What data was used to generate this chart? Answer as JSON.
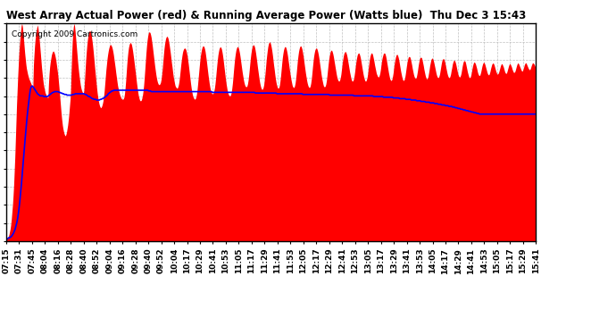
{
  "title": "West Array Actual Power (red) & Running Average Power (Watts blue)  Thu Dec 3 15:43",
  "copyright": "Copyright 2009 Cartronics.com",
  "bar_color": "#ff0000",
  "line_color": "#0000ff",
  "background_color": "#ffffff",
  "grid_color": "#c0c0c0",
  "yticks": [
    0.0,
    25.8,
    51.7,
    77.5,
    103.4,
    129.2,
    155.0,
    180.9,
    206.7,
    232.5,
    258.4,
    284.2,
    310.1
  ],
  "ymax": 310.1,
  "xtick_labels": [
    "07:15",
    "07:31",
    "07:45",
    "08:04",
    "08:16",
    "08:28",
    "08:40",
    "08:52",
    "09:04",
    "09:16",
    "09:28",
    "09:40",
    "09:52",
    "10:04",
    "10:17",
    "10:29",
    "10:41",
    "10:53",
    "11:05",
    "11:17",
    "11:29",
    "11:41",
    "11:53",
    "12:05",
    "12:17",
    "12:29",
    "12:41",
    "12:53",
    "13:05",
    "13:17",
    "13:29",
    "13:41",
    "13:53",
    "14:05",
    "14:17",
    "14:29",
    "14:41",
    "14:53",
    "15:05",
    "15:17",
    "15:29",
    "15:41"
  ],
  "actual_power": [
    3,
    4,
    5,
    6,
    7,
    10,
    14,
    18,
    24,
    32,
    42,
    52,
    65,
    80,
    100,
    120,
    145,
    170,
    195,
    215,
    235,
    252,
    268,
    280,
    291,
    300,
    307,
    310,
    306,
    298,
    288,
    278,
    268,
    260,
    252,
    246,
    242,
    238,
    235,
    232,
    230,
    228,
    226,
    224,
    222,
    220,
    218,
    250,
    265,
    278,
    288,
    295,
    300,
    305,
    308,
    303,
    296,
    288,
    278,
    268,
    258,
    248,
    240,
    232,
    225,
    220,
    216,
    212,
    210,
    208,
    206,
    205,
    204,
    224,
    238,
    248,
    255,
    260,
    265,
    268,
    270,
    271,
    270,
    268,
    265,
    261,
    256,
    250,
    244,
    237,
    229,
    220,
    210,
    200,
    190,
    180,
    172,
    165,
    160,
    156,
    153,
    151,
    150,
    152,
    155,
    160,
    165,
    172,
    180,
    190,
    200,
    210,
    240,
    265,
    285,
    298,
    306,
    310,
    306,
    298,
    288,
    278,
    268,
    258,
    249,
    241,
    234,
    228,
    222,
    218,
    215,
    213,
    211,
    210,
    215,
    228,
    242,
    256,
    268,
    278,
    286,
    292,
    296,
    299,
    300,
    299,
    296,
    292,
    286,
    279,
    271,
    262,
    253,
    244,
    235,
    226,
    218,
    211,
    205,
    200,
    196,
    193,
    191,
    190,
    191,
    193,
    196,
    200,
    206,
    214,
    224,
    234,
    244,
    252,
    260,
    266,
    271,
    275,
    278,
    280,
    280,
    279,
    277,
    274,
    270,
    265,
    259,
    253,
    247,
    240,
    234,
    228,
    222,
    218,
    214,
    211,
    208,
    206,
    204,
    203,
    202,
    202,
    203,
    205,
    210,
    218,
    228,
    240,
    252,
    262,
    270,
    276,
    280,
    282,
    283,
    282,
    280,
    276,
    271,
    265,
    259,
    252,
    245,
    238,
    231,
    224,
    218,
    212,
    207,
    204,
    201,
    200,
    200,
    201,
    204,
    208,
    214,
    222,
    232,
    244,
    256,
    268,
    278,
    286,
    292,
    296,
    298,
    298,
    297,
    294,
    290,
    284,
    278,
    271,
    264,
    257,
    250,
    244,
    238,
    233,
    229,
    226,
    224,
    223,
    223,
    224,
    226,
    230,
    236,
    244,
    254,
    264,
    273,
    280,
    285,
    289,
    291,
    292,
    291,
    289,
    285,
    280,
    274,
    268,
    261,
    254,
    248,
    241,
    235,
    230,
    226,
    222,
    220,
    219,
    218,
    218,
    220,
    223,
    228,
    235,
    243,
    251,
    258,
    264,
    269,
    272,
    274,
    275,
    275,
    274,
    272,
    268,
    264,
    258,
    252,
    245,
    238,
    231,
    224,
    218,
    213,
    209,
    206,
    204,
    203,
    202,
    203,
    205,
    209,
    215,
    223,
    232,
    241,
    250,
    258,
    265,
    270,
    274,
    277,
    278,
    278,
    277,
    274,
    270,
    264,
    258,
    251,
    244,
    237,
    231,
    225,
    220,
    216,
    213,
    211,
    210,
    210,
    211,
    214,
    218,
    224,
    232,
    241,
    250,
    258,
    265,
    270,
    274,
    276,
    277,
    276,
    274,
    270,
    265,
    259,
    252,
    245,
    238,
    231,
    225,
    220,
    215,
    212,
    209,
    208,
    207,
    207,
    209,
    212,
    218,
    225,
    234,
    244,
    253,
    261,
    267,
    272,
    275,
    277,
    277,
    276,
    273,
    269,
    264,
    258,
    252,
    246,
    240,
    235,
    230,
    226,
    223,
    221,
    220,
    220,
    221,
    224,
    229,
    236,
    244,
    253,
    261,
    268,
    273,
    277,
    279,
    280,
    279,
    277,
    273,
    268,
    262,
    256,
    249,
    243,
    237,
    231,
    226,
    222,
    219,
    217,
    216,
    217,
    219,
    223,
    229,
    237,
    246,
    256,
    264,
    271,
    277,
    281,
    283,
    284,
    283,
    280,
    276,
    271,
    265,
    258,
    251,
    245,
    238,
    232,
    227,
    223,
    220,
    218,
    218,
    219,
    222,
    228,
    235,
    244,
    253,
    261,
    267,
    272,
    275,
    277,
    277,
    276,
    273,
    269,
    264,
    258,
    252,
    246,
    240,
    235,
    230,
    226,
    222,
    220,
    219,
    219,
    221,
    225,
    231,
    239,
    248,
    257,
    264,
    270,
    274,
    277,
    278,
    278,
    276,
    273,
    268,
    263,
    257,
    251,
    245,
    239,
    234,
    229,
    225,
    222,
    220,
    219,
    219,
    221,
    225,
    231,
    239,
    248,
    256,
    263,
    268,
    272,
    274,
    275,
    275,
    273,
    270,
    266,
    261,
    255,
    249,
    243,
    237,
    232,
    228,
    224,
    221,
    220,
    220,
    221,
    224,
    229,
    236,
    244,
    252,
    259,
    264,
    268,
    271,
    272,
    272,
    270,
    267,
    263,
    258,
    253,
    248,
    243,
    238,
    234,
    231,
    229,
    228,
    228,
    230,
    233,
    238,
    245,
    252,
    258,
    263,
    267,
    269,
    270,
    270,
    268,
    265,
    261,
    256,
    251,
    246,
    241,
    237,
    233,
    230,
    228,
    228,
    229,
    232,
    237,
    243,
    250,
    256,
    261,
    265,
    267,
    268,
    268,
    266,
    263,
    259,
    254,
    249,
    244,
    239,
    235,
    232,
    229,
    228,
    228,
    230,
    233,
    238,
    245,
    252,
    258,
    263,
    266,
    268,
    268,
    267,
    264,
    260,
    256,
    251,
    247,
    243,
    239,
    237,
    235,
    234,
    234,
    236,
    239,
    244,
    250,
    256,
    261,
    264,
    267,
    268,
    268,
    267,
    264,
    260,
    255,
    250,
    245,
    240,
    236,
    232,
    230,
    229,
    229,
    231,
    235,
    240,
    247,
    253,
    258,
    262,
    265,
    266,
    266,
    264,
    261,
    257,
    252,
    247,
    242,
    238,
    234,
    231,
    229,
    229,
    230,
    233,
    238,
    244,
    250,
    255,
    259,
    262,
    263,
    263,
    262,
    259,
    255,
    251,
    246,
    242,
    238,
    235,
    233,
    232,
    232,
    234,
    238,
    243,
    249,
    254,
    258,
    261,
    262,
    262,
    261,
    258,
    254,
    250,
    245,
    241,
    237,
    234,
    232,
    231,
    232,
    234,
    239,
    244,
    250,
    254,
    258,
    260,
    261,
    260,
    258,
    255,
    251,
    247,
    243,
    239,
    236,
    234,
    233,
    233,
    235,
    238,
    243,
    248,
    253,
    257,
    259,
    260,
    260,
    258,
    255,
    251,
    247,
    243,
    239,
    236,
    234,
    233,
    233,
    235,
    238,
    243,
    247,
    252,
    255,
    257,
    258,
    257,
    255,
    252,
    248,
    244,
    240,
    237,
    235,
    234,
    234,
    236,
    239,
    244,
    249,
    253,
    256,
    257,
    257,
    256,
    253,
    249,
    245,
    241,
    238,
    235,
    233,
    233,
    234,
    237,
    241,
    246,
    250,
    253,
    255,
    255,
    254,
    252,
    249,
    246,
    242,
    239,
    237,
    236,
    236,
    238,
    241,
    245,
    249,
    252,
    254,
    255,
    254,
    252,
    249,
    246,
    243,
    240,
    238,
    237,
    237,
    239,
    242,
    246,
    249,
    252,
    253,
    254,
    253,
    251,
    248,
    245,
    242,
    240,
    238,
    238,
    239,
    241,
    244,
    247,
    250,
    252,
    253,
    252,
    250,
    248,
    245,
    242,
    240,
    239,
    239,
    241,
    244,
    247,
    250,
    252,
    253,
    252,
    250,
    248,
    245,
    243,
    241,
    240,
    241,
    242,
    245,
    248,
    251,
    253,
    254,
    253,
    251,
    249,
    247,
    245,
    243,
    242,
    243,
    245,
    248,
    251,
    253,
    254,
    254,
    252,
    250,
    248,
    246,
    245,
    244,
    245,
    247,
    250,
    252,
    254,
    254,
    253,
    252,
    250,
    248,
    247
  ],
  "running_avg": [
    3,
    3,
    4,
    5,
    5,
    6,
    7,
    9,
    11,
    14,
    17,
    22,
    27,
    34,
    43,
    54,
    67,
    81,
    96,
    112,
    128,
    143,
    158,
    172,
    185,
    196,
    207,
    216,
    220,
    221,
    220,
    218,
    216,
    214,
    212,
    210,
    209,
    208,
    207,
    207,
    207,
    207,
    206,
    206,
    206,
    206,
    206,
    207,
    208,
    209,
    210,
    211,
    212,
    212,
    213,
    213,
    213,
    213,
    213,
    212,
    212,
    211,
    211,
    210,
    210,
    209,
    209,
    209,
    208,
    208,
    208,
    208,
    208,
    208,
    209,
    209,
    209,
    210,
    210,
    210,
    210,
    210,
    210,
    210,
    210,
    210,
    210,
    210,
    209,
    209,
    208,
    207,
    206,
    206,
    205,
    204,
    203,
    203,
    202,
    202,
    202,
    201,
    201,
    201,
    201,
    202,
    202,
    203,
    203,
    204,
    205,
    206,
    207,
    208,
    210,
    211,
    212,
    213,
    214,
    214,
    215,
    215,
    215,
    215,
    215,
    215,
    215,
    215,
    215,
    215,
    215,
    215,
    215,
    215,
    215,
    215,
    215,
    215,
    215,
    215,
    215,
    215,
    215,
    215,
    215,
    215,
    215,
    215,
    215,
    215,
    215,
    215,
    215,
    215,
    215,
    215,
    215,
    215,
    215,
    214,
    214,
    214,
    213,
    213,
    213,
    213,
    213,
    213,
    213,
    213,
    213,
    213,
    213,
    213,
    213,
    213,
    213,
    213,
    213,
    213,
    213,
    213,
    213,
    213,
    213,
    213,
    213,
    213,
    213,
    213,
    213,
    213,
    213,
    213,
    213,
    213,
    213,
    213,
    213,
    213,
    213,
    213,
    213,
    213,
    213,
    213,
    213,
    213,
    213,
    213,
    213,
    213,
    213,
    213,
    213,
    213,
    213,
    213,
    213,
    213,
    213,
    213,
    213,
    213,
    213,
    213,
    213,
    213,
    213,
    213,
    212,
    212,
    212,
    212,
    212,
    212,
    212,
    212,
    212,
    212,
    212,
    212,
    212,
    212,
    212,
    212,
    212,
    212,
    212,
    212,
    212,
    212,
    212,
    212,
    212,
    212,
    212,
    212,
    212,
    212,
    212,
    212,
    212,
    212,
    212,
    212,
    212,
    212,
    212,
    212,
    212,
    212,
    212,
    212,
    212,
    212,
    212,
    212,
    211,
    211,
    211,
    211,
    211,
    211,
    211,
    211,
    211,
    211,
    211,
    211,
    211,
    211,
    211,
    211,
    211,
    211,
    211,
    211,
    211,
    211,
    211,
    211,
    210,
    210,
    210,
    210,
    210,
    210,
    210,
    210,
    210,
    210,
    210,
    210,
    210,
    210,
    210,
    210,
    210,
    210,
    210,
    210,
    210,
    210,
    210,
    210,
    210,
    210,
    210,
    210,
    210,
    209,
    209,
    209,
    209,
    209,
    209,
    209,
    209,
    209,
    209,
    209,
    209,
    209,
    209,
    209,
    209,
    209,
    209,
    209,
    209,
    209,
    209,
    209,
    209,
    209,
    209,
    209,
    209,
    209,
    209,
    208,
    208,
    208,
    208,
    208,
    208,
    208,
    208,
    208,
    208,
    208,
    208,
    208,
    208,
    208,
    208,
    208,
    208,
    208,
    208,
    208,
    208,
    208,
    208,
    208,
    208,
    208,
    207,
    207,
    207,
    207,
    207,
    207,
    207,
    207,
    207,
    207,
    207,
    207,
    207,
    207,
    207,
    207,
    207,
    207,
    207,
    207,
    207,
    207,
    206,
    206,
    206,
    206,
    206,
    206,
    206,
    206,
    206,
    206,
    206,
    205,
    205,
    205,
    205,
    205,
    205,
    205,
    205,
    205,
    205,
    205,
    204,
    204,
    204,
    204,
    204,
    204,
    204,
    203,
    203,
    203,
    203,
    203,
    203,
    203,
    202,
    202,
    202,
    202,
    202,
    202,
    201,
    201,
    201,
    201,
    201,
    201,
    200,
    200,
    200,
    200,
    200,
    199,
    199,
    199,
    199,
    199,
    198,
    198,
    198,
    198,
    198,
    197,
    197,
    197,
    197,
    197,
    196,
    196,
    196,
    196,
    195,
    195,
    195,
    195,
    194,
    194,
    194,
    194,
    193,
    193,
    193,
    193,
    192,
    192,
    192,
    192,
    191,
    191,
    191,
    190,
    190,
    190,
    189,
    189,
    189,
    188,
    188,
    188,
    187,
    187,
    187,
    186,
    186,
    186,
    185,
    185,
    185,
    184,
    184,
    184,
    183,
    183,
    183,
    182,
    182,
    182,
    181,
    181,
    181,
    181,
    181,
    181,
    181,
    181,
    181,
    181,
    181,
    181,
    181,
    181,
    181,
    181,
    181,
    181,
    181,
    181,
    181,
    181,
    181,
    181,
    181,
    181,
    181,
    181,
    181,
    181,
    181,
    181,
    181,
    181,
    181,
    181,
    181,
    181,
    181,
    181,
    181,
    181,
    181,
    181,
    181,
    181,
    181,
    181,
    181,
    181,
    181,
    181,
    181,
    181,
    181,
    181,
    181,
    181,
    181,
    181,
    181,
    181,
    181,
    181
  ]
}
